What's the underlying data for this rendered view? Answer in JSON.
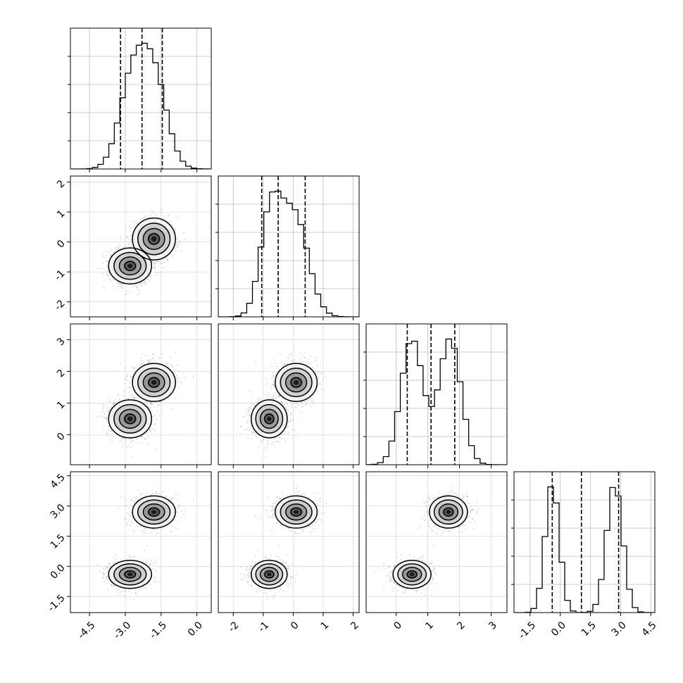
{
  "chart_data": {
    "type": "corner",
    "title": "",
    "grid": true,
    "n_params": 4,
    "params": [
      {
        "label": "",
        "range": [
          -5.3,
          0.6
        ],
        "tick_values": [
          -4.5,
          -3.0,
          -1.5,
          0.0
        ],
        "tick_labels": [
          "-4.5",
          "-3.0",
          "-1.5",
          "0.0"
        ],
        "quantiles": [
          -3.2,
          -2.3,
          -1.45
        ],
        "hist_bin_width": 0.23,
        "hist_components": [
          {
            "weight": 0.5,
            "mean": -2.7,
            "sd": 0.55
          },
          {
            "weight": 0.5,
            "mean": -1.8,
            "sd": 0.55
          }
        ]
      },
      {
        "label": "",
        "range": [
          -2.5,
          2.2
        ],
        "tick_values": [
          -2,
          -1,
          0,
          1,
          2
        ],
        "tick_labels": [
          "-2",
          "-1",
          "0",
          "1",
          "2"
        ],
        "quantiles": [
          -1.05,
          -0.5,
          0.4
        ],
        "hist_bin_width": 0.19,
        "hist_components": [
          {
            "weight": 0.5,
            "mean": -0.75,
            "sd": 0.35
          },
          {
            "weight": 0.5,
            "mean": 0.05,
            "sd": 0.45
          }
        ]
      },
      {
        "label": "",
        "range": [
          -0.95,
          3.5
        ],
        "tick_values": [
          0,
          1,
          2,
          3
        ],
        "tick_labels": [
          "0",
          "1",
          "2",
          "3"
        ],
        "quantiles": [
          0.35,
          1.1,
          1.85
        ],
        "hist_bin_width": 0.18,
        "hist_components": [
          {
            "weight": 0.5,
            "mean": 0.5,
            "sd": 0.35
          },
          {
            "weight": 0.5,
            "mean": 1.7,
            "sd": 0.35
          }
        ]
      },
      {
        "label": "",
        "range": [
          -2.3,
          4.7
        ],
        "tick_values": [
          -1.5,
          0.0,
          1.5,
          3.0,
          4.5
        ],
        "tick_labels": [
          "-1.5",
          "0.0",
          "1.5",
          "3.0",
          "4.5"
        ],
        "quantiles": [
          -0.4,
          1.05,
          2.9
        ],
        "hist_bin_width": 0.28,
        "hist_components": [
          {
            "weight": 0.5,
            "mean": -0.4,
            "sd": 0.35
          },
          {
            "weight": 0.5,
            "mean": 2.7,
            "sd": 0.4
          }
        ]
      }
    ],
    "clusters": [
      {
        "mean": [
          -2.8,
          -0.8,
          0.5,
          -0.4
        ],
        "sd": [
          0.45,
          0.3,
          0.3,
          0.35
        ]
      },
      {
        "mean": [
          -1.8,
          0.1,
          1.65,
          2.7
        ],
        "sd": [
          0.45,
          0.35,
          0.3,
          0.4
        ]
      }
    ],
    "contour_levels_sigma": [
      0.5,
      1.0,
      1.5,
      2.0
    ]
  }
}
